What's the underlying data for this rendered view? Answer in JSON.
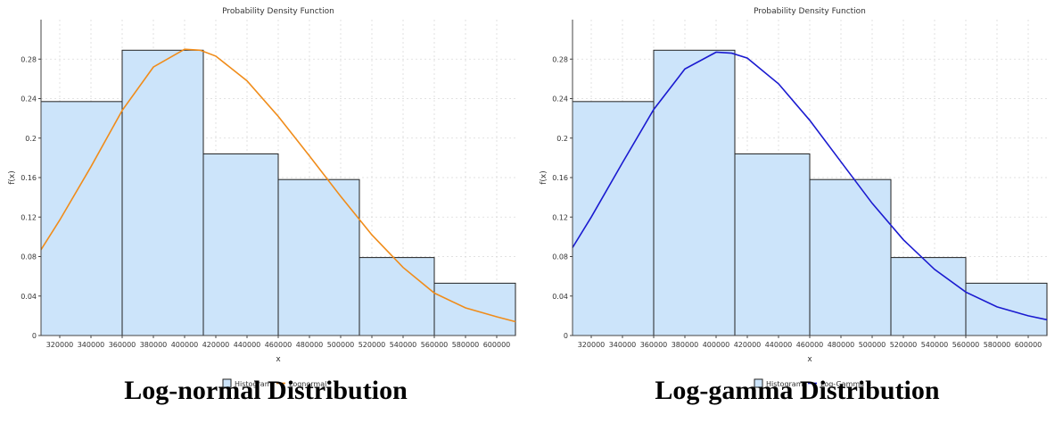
{
  "chart_data": [
    {
      "type": "bar",
      "title": "Probability Density Function",
      "xlabel": "x",
      "ylabel": "f(x)",
      "xlim": [
        308000,
        612000
      ],
      "ylim": [
        0,
        0.32
      ],
      "xticks": [
        320000,
        340000,
        360000,
        380000,
        400000,
        420000,
        440000,
        460000,
        480000,
        500000,
        520000,
        540000,
        560000,
        580000,
        600000
      ],
      "yticks": [
        0,
        0.04,
        0.08,
        0.12,
        0.16,
        0.2,
        0.24,
        0.28
      ],
      "ytick_labels": [
        "0",
        "0.04",
        "0.08",
        "0.12",
        "0.16",
        "0.2",
        "0.24",
        "0.28"
      ],
      "grid": true,
      "legend_placement": "bottom-center",
      "histogram": {
        "name": "Histogram",
        "color": "#cce4fa",
        "bins": [
          {
            "x0": 308000,
            "x1": 360000,
            "density": 0.237
          },
          {
            "x0": 360000,
            "x1": 412000,
            "density": 0.289
          },
          {
            "x0": 412000,
            "x1": 460000,
            "density": 0.184
          },
          {
            "x0": 460000,
            "x1": 512000,
            "density": 0.158
          },
          {
            "x0": 512000,
            "x1": 560000,
            "density": 0.079
          },
          {
            "x0": 560000,
            "x1": 612000,
            "density": 0.053
          }
        ]
      },
      "series": [
        {
          "name": "Lognormal",
          "color": "#f08c1a",
          "x": [
            308000,
            320000,
            340000,
            360000,
            380000,
            400000,
            410000,
            420000,
            440000,
            460000,
            480000,
            500000,
            520000,
            540000,
            560000,
            580000,
            600000,
            612000
          ],
          "y": [
            0.087,
            0.117,
            0.171,
            0.228,
            0.272,
            0.29,
            0.289,
            0.283,
            0.258,
            0.222,
            0.182,
            0.141,
            0.102,
            0.069,
            0.043,
            0.028,
            0.019,
            0.014
          ]
        }
      ],
      "caption": "Log-normal Distribution"
    },
    {
      "type": "bar",
      "title": "Probability Density Function",
      "xlabel": "x",
      "ylabel": "f(x)",
      "xlim": [
        308000,
        612000
      ],
      "ylim": [
        0,
        0.32
      ],
      "xticks": [
        320000,
        340000,
        360000,
        380000,
        400000,
        420000,
        440000,
        460000,
        480000,
        500000,
        520000,
        540000,
        560000,
        580000,
        600000
      ],
      "yticks": [
        0,
        0.04,
        0.08,
        0.12,
        0.16,
        0.2,
        0.24,
        0.28
      ],
      "ytick_labels": [
        "0",
        "0.04",
        "0.08",
        "0.12",
        "0.16",
        "0.2",
        "0.24",
        "0.28"
      ],
      "grid": true,
      "legend_placement": "bottom-center",
      "histogram": {
        "name": "Histogram",
        "color": "#cce4fa",
        "bins": [
          {
            "x0": 308000,
            "x1": 360000,
            "density": 0.237
          },
          {
            "x0": 360000,
            "x1": 412000,
            "density": 0.289
          },
          {
            "x0": 412000,
            "x1": 460000,
            "density": 0.184
          },
          {
            "x0": 460000,
            "x1": 512000,
            "density": 0.158
          },
          {
            "x0": 512000,
            "x1": 560000,
            "density": 0.079
          },
          {
            "x0": 560000,
            "x1": 612000,
            "density": 0.053
          }
        ]
      },
      "series": [
        {
          "name": "Log-Gamma",
          "color": "#1a1ad0",
          "x": [
            308000,
            320000,
            340000,
            360000,
            380000,
            400000,
            410000,
            420000,
            440000,
            460000,
            480000,
            500000,
            520000,
            540000,
            560000,
            580000,
            600000,
            612000
          ],
          "y": [
            0.089,
            0.12,
            0.175,
            0.229,
            0.27,
            0.287,
            0.286,
            0.281,
            0.255,
            0.218,
            0.176,
            0.134,
            0.097,
            0.067,
            0.044,
            0.029,
            0.02,
            0.016
          ]
        }
      ],
      "caption": "Log-gamma Distribution"
    }
  ]
}
